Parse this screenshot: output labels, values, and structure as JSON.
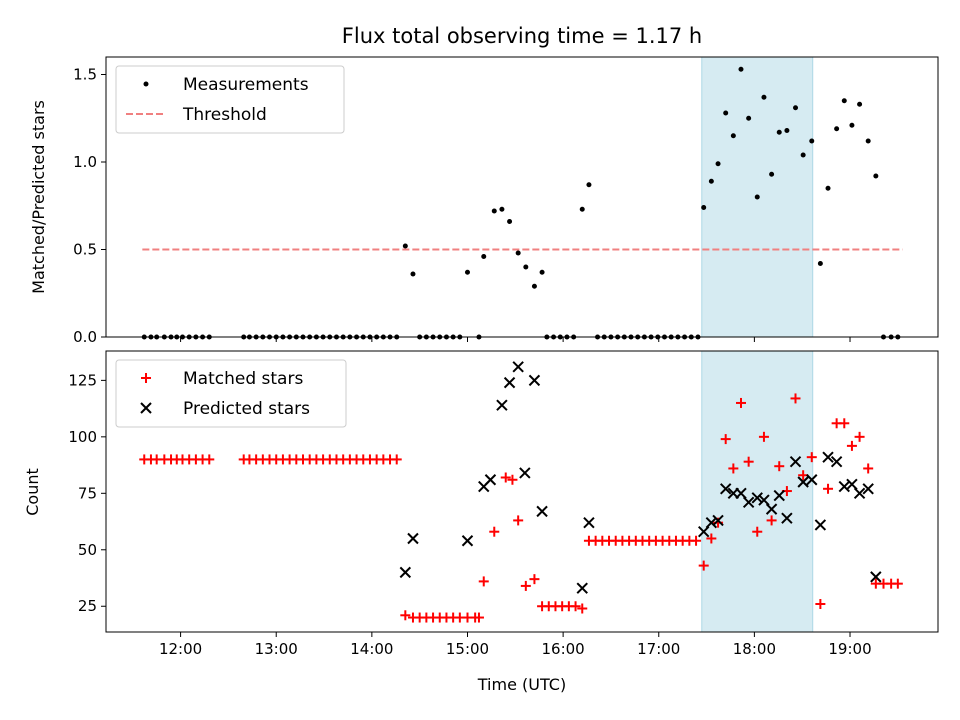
{
  "figure": {
    "title": "Flux total observing time = 1.17 h"
  },
  "chart_data": [
    {
      "type": "scatter",
      "ylabel": "Matched/Predicted stars",
      "ylim": [
        0,
        1.6
      ],
      "yticks": [
        0.0,
        0.5,
        1.0,
        1.5
      ],
      "ytick_labels": [
        "0.0",
        "0.5",
        "1.0",
        "1.5"
      ],
      "xlim": [
        11.22,
        19.92
      ],
      "xticks": [
        12,
        13,
        14,
        15,
        16,
        17,
        18,
        19
      ],
      "highlight_span": {
        "x0": 17.45,
        "x1": 18.61,
        "color": "#add8e6"
      },
      "legend_position": "upper-left",
      "legend": [
        {
          "label": "Measurements",
          "marker": "dot",
          "color": "#000000"
        },
        {
          "label": "Threshold",
          "marker": "dashed-line",
          "color": "#f08080"
        }
      ],
      "threshold": {
        "y": 0.5,
        "x_start": 11.6,
        "x_end": 19.55
      },
      "series": [
        {
          "name": "Measurements",
          "points": [
            [
              11.62,
              0
            ],
            [
              11.69,
              0
            ],
            [
              11.75,
              0
            ],
            [
              11.83,
              0
            ],
            [
              11.9,
              0
            ],
            [
              11.96,
              0
            ],
            [
              12.02,
              0
            ],
            [
              12.09,
              0
            ],
            [
              12.16,
              0
            ],
            [
              12.23,
              0
            ],
            [
              12.3,
              0
            ],
            [
              12.66,
              0
            ],
            [
              12.72,
              0
            ],
            [
              12.79,
              0
            ],
            [
              12.86,
              0
            ],
            [
              12.93,
              0
            ],
            [
              13.0,
              0
            ],
            [
              13.07,
              0
            ],
            [
              13.14,
              0
            ],
            [
              13.21,
              0
            ],
            [
              13.28,
              0
            ],
            [
              13.35,
              0
            ],
            [
              13.42,
              0
            ],
            [
              13.49,
              0
            ],
            [
              13.56,
              0
            ],
            [
              13.63,
              0
            ],
            [
              13.7,
              0
            ],
            [
              13.77,
              0
            ],
            [
              13.84,
              0
            ],
            [
              13.91,
              0
            ],
            [
              13.98,
              0
            ],
            [
              14.05,
              0
            ],
            [
              14.12,
              0
            ],
            [
              14.19,
              0
            ],
            [
              14.26,
              0
            ],
            [
              14.35,
              0.52
            ],
            [
              14.43,
              0.36
            ],
            [
              14.5,
              0
            ],
            [
              14.57,
              0
            ],
            [
              14.64,
              0
            ],
            [
              14.71,
              0
            ],
            [
              14.78,
              0
            ],
            [
              14.85,
              0
            ],
            [
              14.92,
              0
            ],
            [
              15.0,
              0.37
            ],
            [
              15.12,
              0
            ],
            [
              15.17,
              0.46
            ],
            [
              15.28,
              0.72
            ],
            [
              15.36,
              0.73
            ],
            [
              15.44,
              0.66
            ],
            [
              15.53,
              0.48
            ],
            [
              15.61,
              0.4
            ],
            [
              15.7,
              0.29
            ],
            [
              15.78,
              0.37
            ],
            [
              15.83,
              0
            ],
            [
              15.9,
              0
            ],
            [
              15.97,
              0
            ],
            [
              16.04,
              0
            ],
            [
              16.11,
              0
            ],
            [
              16.2,
              0.73
            ],
            [
              16.27,
              0.87
            ],
            [
              16.36,
              0
            ],
            [
              16.43,
              0
            ],
            [
              16.5,
              0
            ],
            [
              16.57,
              0
            ],
            [
              16.64,
              0
            ],
            [
              16.71,
              0
            ],
            [
              16.78,
              0
            ],
            [
              16.85,
              0
            ],
            [
              16.92,
              0
            ],
            [
              16.99,
              0
            ],
            [
              17.06,
              0
            ],
            [
              17.13,
              0
            ],
            [
              17.2,
              0
            ],
            [
              17.27,
              0
            ],
            [
              17.34,
              0
            ],
            [
              17.41,
              0
            ],
            [
              17.47,
              0.74
            ],
            [
              17.55,
              0.89
            ],
            [
              17.62,
              0.99
            ],
            [
              17.7,
              1.28
            ],
            [
              17.78,
              1.15
            ],
            [
              17.86,
              1.53
            ],
            [
              17.94,
              1.25
            ],
            [
              18.03,
              0.8
            ],
            [
              18.1,
              1.37
            ],
            [
              18.18,
              0.93
            ],
            [
              18.26,
              1.17
            ],
            [
              18.34,
              1.18
            ],
            [
              18.43,
              1.31
            ],
            [
              18.51,
              1.04
            ],
            [
              18.6,
              1.12
            ],
            [
              18.69,
              0.42
            ],
            [
              18.77,
              0.85
            ],
            [
              18.86,
              1.19
            ],
            [
              18.94,
              1.35
            ],
            [
              19.02,
              1.21
            ],
            [
              19.1,
              1.33
            ],
            [
              19.19,
              1.12
            ],
            [
              19.27,
              0.92
            ],
            [
              19.35,
              0
            ],
            [
              19.43,
              0
            ],
            [
              19.5,
              0
            ]
          ]
        }
      ]
    },
    {
      "type": "scatter",
      "xlabel": "Time (UTC)",
      "ylabel": "Count",
      "ylim": [
        13.6,
        138
      ],
      "yticks": [
        25,
        50,
        75,
        100,
        125
      ],
      "xlim": [
        11.22,
        19.92
      ],
      "xticks": [
        12,
        13,
        14,
        15,
        16,
        17,
        18,
        19
      ],
      "xtick_labels": [
        "12:00",
        "13:00",
        "14:00",
        "15:00",
        "16:00",
        "17:00",
        "18:00",
        "19:00"
      ],
      "highlight_span": {
        "x0": 17.45,
        "x1": 18.61,
        "color": "#add8e6"
      },
      "legend_position": "upper-left",
      "legend": [
        {
          "label": "Matched stars",
          "marker": "plus",
          "color": "#ff0000"
        },
        {
          "label": "Predicted stars",
          "marker": "x",
          "color": "#000000"
        }
      ],
      "series": [
        {
          "name": "Matched stars",
          "points": [
            [
              11.62,
              90
            ],
            [
              11.69,
              90
            ],
            [
              11.75,
              90
            ],
            [
              11.83,
              90
            ],
            [
              11.9,
              90
            ],
            [
              11.96,
              90
            ],
            [
              12.02,
              90
            ],
            [
              12.09,
              90
            ],
            [
              12.16,
              90
            ],
            [
              12.23,
              90
            ],
            [
              12.3,
              90
            ],
            [
              12.66,
              90
            ],
            [
              12.72,
              90
            ],
            [
              12.79,
              90
            ],
            [
              12.86,
              90
            ],
            [
              12.93,
              90
            ],
            [
              13.0,
              90
            ],
            [
              13.07,
              90
            ],
            [
              13.14,
              90
            ],
            [
              13.21,
              90
            ],
            [
              13.28,
              90
            ],
            [
              13.35,
              90
            ],
            [
              13.42,
              90
            ],
            [
              13.49,
              90
            ],
            [
              13.56,
              90
            ],
            [
              13.63,
              90
            ],
            [
              13.7,
              90
            ],
            [
              13.77,
              90
            ],
            [
              13.84,
              90
            ],
            [
              13.91,
              90
            ],
            [
              13.98,
              90
            ],
            [
              14.05,
              90
            ],
            [
              14.12,
              90
            ],
            [
              14.19,
              90
            ],
            [
              14.26,
              90
            ],
            [
              14.35,
              21
            ],
            [
              14.43,
              20
            ],
            [
              14.5,
              20
            ],
            [
              14.57,
              20
            ],
            [
              14.64,
              20
            ],
            [
              14.71,
              20
            ],
            [
              14.78,
              20
            ],
            [
              14.85,
              20
            ],
            [
              14.92,
              20
            ],
            [
              15.0,
              20
            ],
            [
              15.08,
              20
            ],
            [
              15.12,
              20
            ],
            [
              15.17,
              36
            ],
            [
              15.28,
              58
            ],
            [
              15.4,
              82
            ],
            [
              15.47,
              81
            ],
            [
              15.53,
              63
            ],
            [
              15.61,
              34
            ],
            [
              15.7,
              37
            ],
            [
              15.78,
              25
            ],
            [
              15.85,
              25
            ],
            [
              15.92,
              25
            ],
            [
              15.99,
              25
            ],
            [
              16.06,
              25
            ],
            [
              16.13,
              25
            ],
            [
              16.2,
              24
            ],
            [
              16.27,
              54
            ],
            [
              16.34,
              54
            ],
            [
              16.41,
              54
            ],
            [
              16.48,
              54
            ],
            [
              16.55,
              54
            ],
            [
              16.62,
              54
            ],
            [
              16.69,
              54
            ],
            [
              16.76,
              54
            ],
            [
              16.83,
              54
            ],
            [
              16.9,
              54
            ],
            [
              16.97,
              54
            ],
            [
              17.04,
              54
            ],
            [
              17.11,
              54
            ],
            [
              17.18,
              54
            ],
            [
              17.25,
              54
            ],
            [
              17.32,
              54
            ],
            [
              17.39,
              54
            ],
            [
              17.47,
              43
            ],
            [
              17.55,
              55
            ],
            [
              17.62,
              62
            ],
            [
              17.7,
              99
            ],
            [
              17.78,
              86
            ],
            [
              17.86,
              115
            ],
            [
              17.94,
              89
            ],
            [
              18.03,
              58
            ],
            [
              18.1,
              100
            ],
            [
              18.18,
              63
            ],
            [
              18.26,
              87
            ],
            [
              18.34,
              76
            ],
            [
              18.43,
              117
            ],
            [
              18.51,
              83
            ],
            [
              18.6,
              91
            ],
            [
              18.69,
              26
            ],
            [
              18.77,
              77
            ],
            [
              18.86,
              106
            ],
            [
              18.94,
              106
            ],
            [
              19.02,
              96
            ],
            [
              19.1,
              100
            ],
            [
              19.19,
              86
            ],
            [
              19.27,
              35
            ],
            [
              19.35,
              35
            ],
            [
              19.43,
              35
            ],
            [
              19.5,
              35
            ]
          ]
        },
        {
          "name": "Predicted stars",
          "points": [
            [
              14.35,
              40
            ],
            [
              14.43,
              55
            ],
            [
              15.0,
              54
            ],
            [
              15.17,
              78
            ],
            [
              15.24,
              81
            ],
            [
              15.36,
              114
            ],
            [
              15.44,
              124
            ],
            [
              15.53,
              131
            ],
            [
              15.6,
              84
            ],
            [
              15.7,
              125
            ],
            [
              15.78,
              67
            ],
            [
              16.2,
              33
            ],
            [
              16.27,
              62
            ],
            [
              17.47,
              58
            ],
            [
              17.55,
              62
            ],
            [
              17.62,
              63
            ],
            [
              17.7,
              77
            ],
            [
              17.78,
              75
            ],
            [
              17.86,
              75
            ],
            [
              17.94,
              71
            ],
            [
              18.03,
              73
            ],
            [
              18.1,
              72
            ],
            [
              18.18,
              68
            ],
            [
              18.26,
              74
            ],
            [
              18.34,
              64
            ],
            [
              18.43,
              89
            ],
            [
              18.51,
              80
            ],
            [
              18.6,
              81
            ],
            [
              18.69,
              61
            ],
            [
              18.77,
              91
            ],
            [
              18.86,
              89
            ],
            [
              18.94,
              78
            ],
            [
              19.02,
              79
            ],
            [
              19.1,
              75
            ],
            [
              19.19,
              77
            ],
            [
              19.27,
              38
            ]
          ]
        }
      ]
    }
  ]
}
